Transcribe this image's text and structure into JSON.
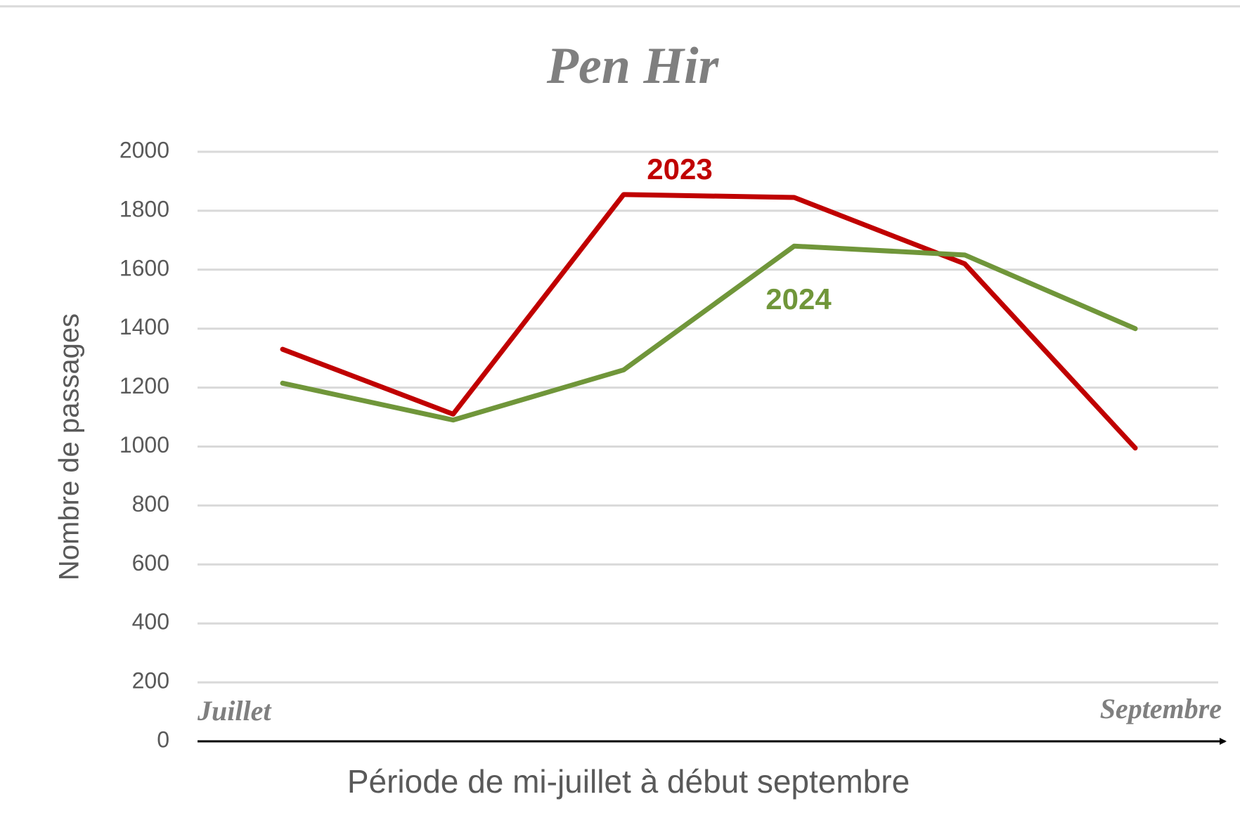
{
  "chart_data": {
    "type": "line",
    "title": "Pen Hir",
    "y_label": "Nombre de passages",
    "x_label": "Période de mi-juillet à début septembre",
    "annotations": [
      "Juillet",
      "Septembre"
    ],
    "categories": [
      null,
      null,
      null,
      null,
      null,
      null
    ],
    "series": [
      {
        "name": "2023",
        "color": "#c00000",
        "values": [
          1330,
          1110,
          1855,
          1845,
          1620,
          995
        ]
      },
      {
        "name": "2024",
        "color": "#70963a",
        "values": [
          1215,
          1090,
          1260,
          1680,
          1650,
          1400
        ]
      }
    ],
    "ylim": [
      0,
      2000
    ],
    "yticks": [
      0,
      200,
      400,
      600,
      800,
      1000,
      1200,
      1400,
      1600,
      1800,
      2000
    ],
    "grid": true
  }
}
